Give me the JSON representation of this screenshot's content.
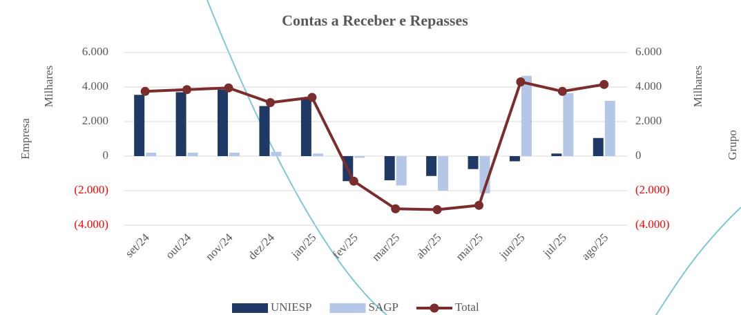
{
  "chart_data": {
    "type": "bar",
    "title": "Contas a Receber e Repasses",
    "y_label": "Empresa",
    "y_unit": "Milhares",
    "y2_label": "Grupo",
    "y2_unit": "Milhares",
    "categories": [
      "set/24",
      "out/24",
      "nov/24",
      "dez/24",
      "jan/25",
      "fev/25",
      "mar/25",
      "abr/25",
      "mai/25",
      "jun/25",
      "jul/25",
      "ago/25"
    ],
    "series": [
      {
        "name": "UNIESP",
        "type": "bar",
        "color": "#1f3864",
        "values": [
          3550,
          3700,
          3850,
          2900,
          3300,
          -1450,
          -1400,
          -1150,
          -750,
          -300,
          150,
          1050
        ]
      },
      {
        "name": "SAGP",
        "type": "bar",
        "color": "#b4c7e7",
        "values": [
          200,
          200,
          200,
          250,
          150,
          -100,
          -1700,
          -2000,
          -2150,
          4650,
          3650,
          3200
        ]
      },
      {
        "name": "Total",
        "type": "line",
        "color": "#7b2c2c",
        "values": [
          3750,
          3850,
          3950,
          3100,
          3400,
          -1450,
          -3050,
          -3100,
          -2850,
          4300,
          3750,
          4150
        ]
      }
    ],
    "ylim": [
      -4000,
      6000
    ],
    "yticks": [
      {
        "value": -4000,
        "label": "(4.000)"
      },
      {
        "value": -2000,
        "label": "(2.000)"
      },
      0,
      {
        "value": 2000,
        "label": "2.000"
      },
      {
        "value": 4000,
        "label": "4.000"
      },
      {
        "value": 6000,
        "label": "6.000"
      }
    ],
    "y2lim": [
      -4000,
      6000
    ],
    "y2ticks": [
      {
        "value": -4000,
        "label": "(4.000)"
      },
      {
        "value": -2000,
        "label": "(2.000)"
      },
      0,
      {
        "value": 2000,
        "label": "2.000"
      },
      {
        "value": 4000,
        "label": "4.000"
      },
      {
        "value": 6000,
        "label": "6.000"
      }
    ],
    "negative_tick_color": "#ff0000",
    "grid": true,
    "legend": "bottom"
  }
}
